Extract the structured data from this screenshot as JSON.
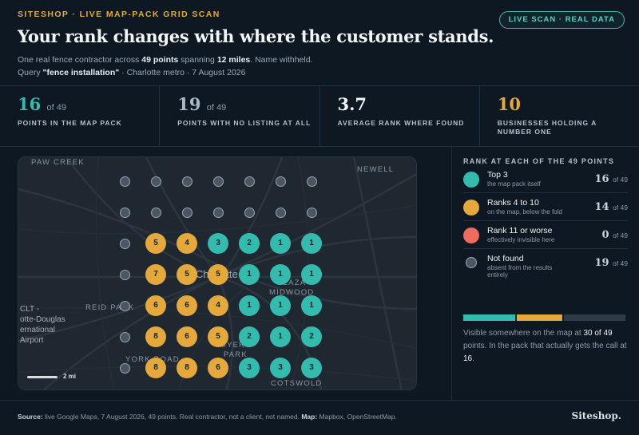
{
  "header": {
    "eyebrow": "SITESHOP · LIVE MAP-PACK GRID SCAN",
    "title": "Your rank changes with where the customer stands.",
    "sub_line1_a": "One real fence contractor across ",
    "sub_points": "49 points",
    "sub_line1_b": " spanning ",
    "sub_miles": "12 miles",
    "sub_line1_c": ". Name withheld.",
    "sub_query_label": "Query ",
    "sub_query": "\"fence installation\"",
    "sub_query_rest": " · Charlotte metro · 7 August 2026",
    "pill": "LIVE SCAN · REAL DATA"
  },
  "stats": [
    {
      "value": "16",
      "of": "of 49",
      "label": "POINTS IN THE MAP PACK",
      "color": "#33bcae"
    },
    {
      "value": "19",
      "of": "of 49",
      "label": "POINTS WITH NO LISTING AT ALL",
      "color": "#aab8c6"
    },
    {
      "value": "3.7",
      "of": "",
      "label": "AVERAGE RANK WHERE FOUND",
      "color": "#f4f6f8"
    },
    {
      "value": "10",
      "of": "",
      "label_1": "BUSINESSES HOLDING A",
      "label_2": "NUMBER ONE",
      "color": "#e4a93a"
    }
  ],
  "map": {
    "labels": {
      "paw_creek": "PAW CREEK",
      "newell": "NEWELL",
      "reid_park": "REID PARK",
      "plaza_midwood_1": "PLAZA",
      "plaza_midwood_2": "MIDWOOD",
      "york_road": "YORK ROAD",
      "cotswold": "COTSWOLD",
      "myers_park_1": "MYERS",
      "myers_park_2": "PARK",
      "charlotte": "Charlotte",
      "airport_1": "CLT -",
      "airport_2": "otte-Douglas",
      "airport_3": "ernational",
      "airport_4": "Airport",
      "scale": "2 mi"
    },
    "grid": [
      [
        null,
        null,
        null,
        null,
        null,
        null,
        null
      ],
      [
        null,
        null,
        null,
        null,
        null,
        null,
        null
      ],
      [
        null,
        5,
        4,
        3,
        2,
        1,
        1
      ],
      [
        null,
        7,
        5,
        5,
        1,
        1,
        1
      ],
      [
        null,
        6,
        6,
        4,
        1,
        1,
        1
      ],
      [
        null,
        8,
        6,
        5,
        2,
        1,
        2
      ],
      [
        null,
        8,
        8,
        6,
        3,
        3,
        3
      ]
    ],
    "colors": {
      "top": "#33bcae",
      "mid": "#e4a93a",
      "low": "#ee6b5e",
      "none": "#4a5664"
    }
  },
  "legend": {
    "title": "RANK AT EACH OF THE 49 POINTS",
    "items": [
      {
        "name": "Top 3",
        "desc": "the map pack itself",
        "count": "16",
        "of": "of 49",
        "color": "#33bcae"
      },
      {
        "name": "Ranks 4 to 10",
        "desc": "on the map, below the fold",
        "count": "14",
        "of": "of 49",
        "color": "#e4a93a"
      },
      {
        "name": "Rank 11 or worse",
        "desc": "effectively invisible here",
        "count": "0",
        "of": "of 49",
        "color": "#ee6b5e"
      },
      {
        "name": "Not found",
        "desc": "absent from the results entirely",
        "count": "19",
        "of": "of 49",
        "color": "#4a5664"
      }
    ],
    "note_a": "Visible somewhere on the map at ",
    "note_b": "30 of 49",
    "note_c": " points. In the pack that actually gets the call at ",
    "note_d": "16",
    "note_e": "."
  },
  "footer": {
    "source_label": "Source:",
    "source_text": " live Google Maps, 7 August 2026, 49 points. Real contractor, not a client, not named. ",
    "map_label": "Map:",
    "map_text": " Mapbox, OpenStreetMap.",
    "brand": "Siteshop."
  }
}
